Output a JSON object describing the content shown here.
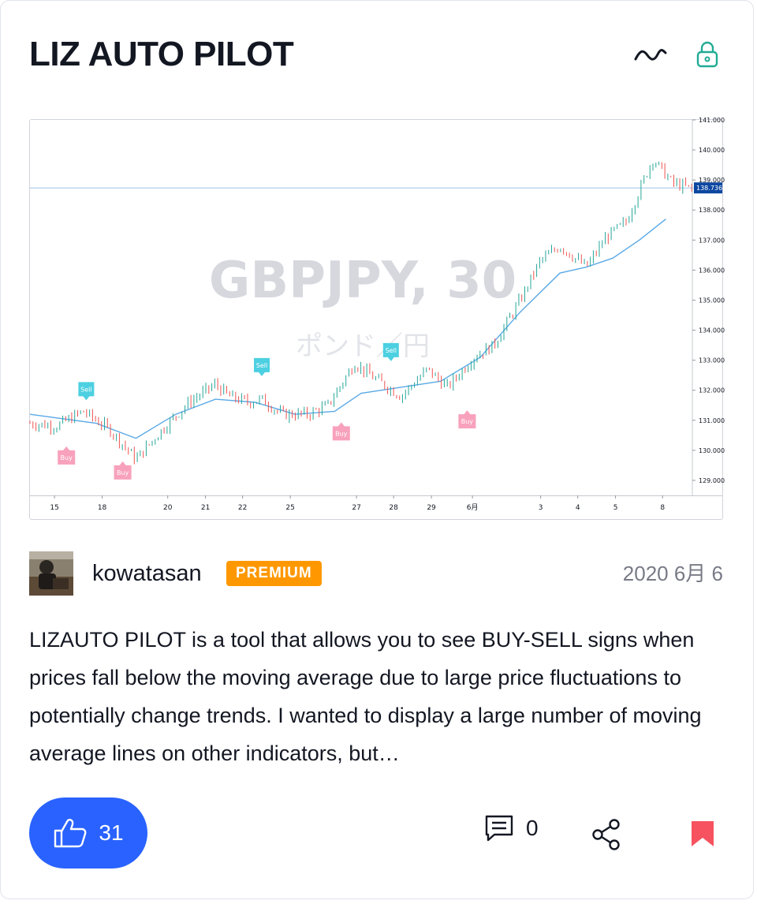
{
  "idea": {
    "title": "LIZ AUTO PILOT",
    "author": "kowatasan",
    "badge": "PREMIUM",
    "date": "2020 6月 6",
    "description": "LIZAUTO PILOT is a tool that allows you to see BUY-SELL signs when prices fall below the moving average due to large price fluctuations to potentially change trends. I wanted to display a large number of moving average lines on other indicators, but…"
  },
  "header_icons": [
    "chart-line-icon",
    "lock-icon"
  ],
  "actions": {
    "like_count": "31",
    "comment_count": "0"
  },
  "colors": {
    "primary": "#2962ff",
    "badge": "#ff9800",
    "lock": "#22ab94",
    "bookmark": "#f7525f",
    "candle_up": "#26a69a",
    "candle_down": "#ef5350",
    "ma_line": "#5aa9e6",
    "buy_tag": "#f8a1bd",
    "sell_tag": "#4dd0e1",
    "last_price": "#0d47a1"
  },
  "chart_data": {
    "type": "line",
    "watermark": "GBPJPY, 30",
    "watermark_sub": "ポンド／円",
    "x_ticks": [
      "15",
      "18",
      "20",
      "21",
      "22",
      "25",
      "27",
      "28",
      "29",
      "6月",
      "3",
      "4",
      "5",
      "8"
    ],
    "y_ticks": [
      "141.000",
      "140.000",
      "139.000",
      "138.000",
      "137.000",
      "136.000",
      "135.000",
      "134.000",
      "133.000",
      "132.000",
      "131.000",
      "130.000",
      "129.000"
    ],
    "ylim": [
      128.5,
      141.0
    ],
    "last_price": "138.736",
    "series": [
      {
        "name": "",
        "x": [
          0,
          4,
          8,
          12,
          16,
          20,
          24,
          28,
          30,
          33,
          35,
          38,
          42,
          45,
          49,
          52,
          56,
          60,
          63,
          67,
          70,
          74,
          77,
          80,
          84,
          87,
          90,
          94,
          97,
          100
        ],
        "values": [
          130.9,
          130.8,
          131.3,
          130.7,
          129.7,
          130.7,
          131.6,
          132.2,
          131.8,
          131.6,
          131.7,
          131.2,
          131.2,
          131.5,
          132.9,
          132.4,
          131.8,
          132.7,
          132.1,
          133.1,
          133.5,
          135.0,
          136.3,
          136.8,
          136.1,
          137.1,
          137.6,
          139.7,
          138.9,
          138.7
        ]
      },
      {
        "name": "",
        "x": [
          0,
          10,
          16,
          22,
          28,
          34,
          40,
          46,
          50,
          56,
          62,
          68,
          74,
          80,
          84,
          88,
          92,
          96
        ],
        "values": [
          131.2,
          130.9,
          130.4,
          131.2,
          131.7,
          131.6,
          131.2,
          131.3,
          131.9,
          132.1,
          132.3,
          133.1,
          134.6,
          135.9,
          136.1,
          136.4,
          137.0,
          137.7
        ]
      }
    ],
    "signals": [
      {
        "label": "Buy",
        "x": 5.5,
        "y": 130.0
      },
      {
        "label": "Sell",
        "x": 8.5,
        "y": 131.8
      },
      {
        "label": "Buy",
        "x": 14,
        "y": 129.5
      },
      {
        "label": "Sell",
        "x": 35,
        "y": 132.6
      },
      {
        "label": "Buy",
        "x": 47,
        "y": 130.8
      },
      {
        "label": "Sell",
        "x": 54.5,
        "y": 133.1
      },
      {
        "label": "Buy",
        "x": 66,
        "y": 131.2
      }
    ]
  }
}
